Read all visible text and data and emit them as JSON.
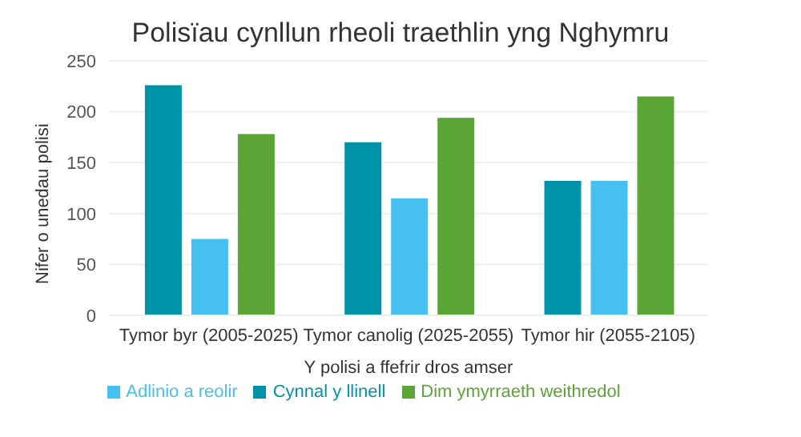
{
  "chart_data": {
    "type": "bar",
    "title": "Polisïau cynllun rheoli traethlin yng Nghymru",
    "xlabel": "Y polisi a ffefrir dros amser",
    "ylabel": "Nifer o unedau polisi",
    "categories": [
      "Tymor byr (2005-2025)",
      "Tymor canolig (2025-2055)",
      "Tymor hir (2055-2105)"
    ],
    "series": [
      {
        "name": "Cynnal y llinell",
        "color": "#0092a8",
        "values": [
          226,
          170,
          132
        ]
      },
      {
        "name": "Adlinio a reolir",
        "color": "#45c0f0",
        "values": [
          75,
          115,
          132
        ]
      },
      {
        "name": "Dim ymyrraeth weithredol",
        "color": "#5aa535",
        "values": [
          178,
          194,
          215
        ]
      }
    ],
    "ylim": [
      0,
      250
    ],
    "yticks": [
      0,
      50,
      100,
      150,
      200,
      250
    ],
    "grid": "y",
    "legend": "bottom"
  }
}
